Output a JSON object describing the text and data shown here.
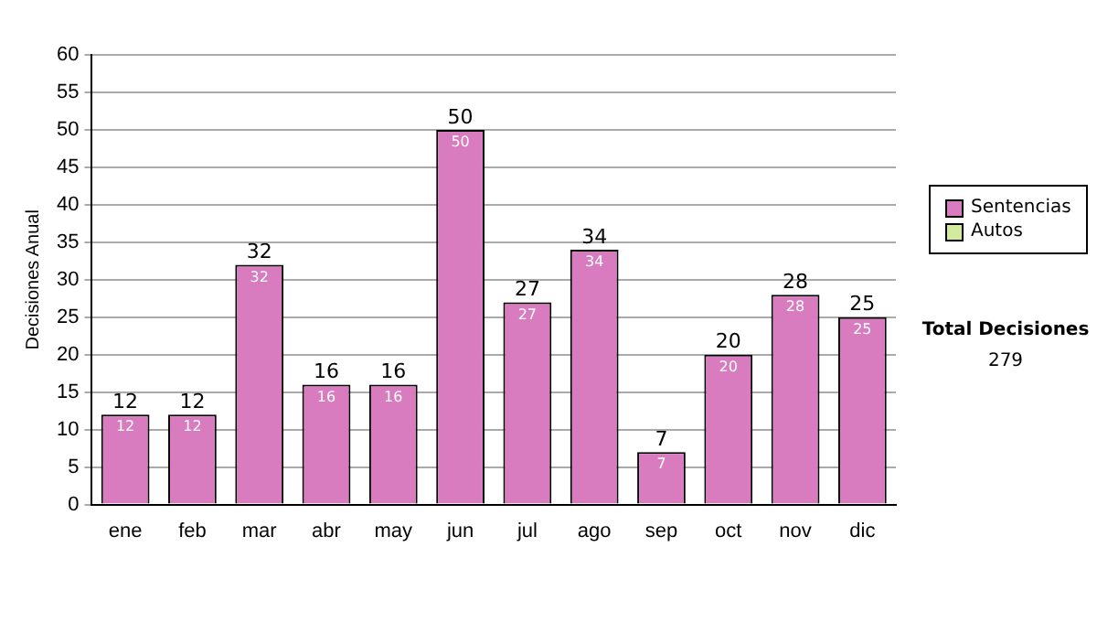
{
  "chart_data": {
    "type": "bar",
    "ylabel": "Decisiones Anual",
    "categories": [
      "ene",
      "feb",
      "mar",
      "abr",
      "may",
      "jun",
      "jul",
      "ago",
      "sep",
      "oct",
      "nov",
      "dic"
    ],
    "series": [
      {
        "name": "Sentencias",
        "color": "#d97bbf",
        "values": [
          12,
          12,
          32,
          16,
          16,
          50,
          27,
          34,
          7,
          20,
          28,
          25
        ],
        "value_labels": [
          "12",
          "12",
          "32",
          "16",
          "16",
          "50",
          "27",
          "34",
          "7",
          "20",
          "28",
          "25"
        ]
      },
      {
        "name": "Autos",
        "color": "#d4eaa0",
        "values": [
          0,
          0,
          0,
          0,
          0,
          0,
          0,
          0,
          0,
          0,
          0,
          0
        ]
      }
    ],
    "stacked": true,
    "totals": [
      "12",
      "12",
      "32",
      "16",
      "16",
      "50",
      "27",
      "34",
      "7",
      "20",
      "28",
      "25"
    ],
    "ylim": [
      0,
      60
    ],
    "yticks": [
      0,
      5,
      10,
      15,
      20,
      25,
      30,
      35,
      40,
      45,
      50,
      55,
      60
    ],
    "grid": "y",
    "legend": "right",
    "annotations": [
      "Total Decisiones",
      "279"
    ]
  }
}
